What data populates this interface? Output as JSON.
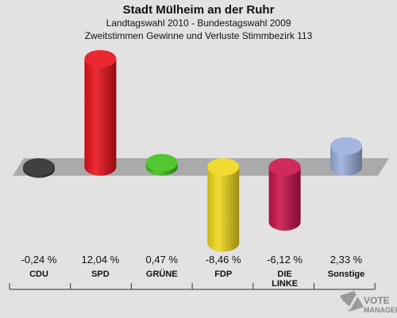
{
  "title": "Stadt Mülheim an der Ruhr",
  "subtitle1": "Landtagswahl 2010 - Bundestagswahl 2009",
  "subtitle2": "Zweitstimmen Gewinne und Verluste Stimmbezirk 113",
  "watermark": {
    "line1": "VOTE",
    "line2": "MANAGER"
  },
  "chart_data": {
    "type": "bar",
    "title": "Stadt Mülheim an der Ruhr",
    "subtitle": "Zweitstimmen Gewinne und Verluste Stimmbezirk 113",
    "categories": [
      "CDU",
      "SPD",
      "GRÜNE",
      "FDP",
      "DIE LINKE",
      "Sonstige"
    ],
    "category_labels": [
      [
        "CDU"
      ],
      [
        "SPD"
      ],
      [
        "GRÜNE"
      ],
      [
        "FDP"
      ],
      [
        "DIE",
        "LINKE"
      ],
      [
        "Sonstige"
      ]
    ],
    "values": [
      -0.24,
      12.04,
      0.47,
      -8.46,
      -6.12,
      2.33
    ],
    "value_labels": [
      "-0,24 %",
      "12,04 %",
      "0,47 %",
      "-8,46 %",
      "-6,12 %",
      "2,33 %"
    ],
    "colors": [
      "#2b2b2b",
      "#e8101a",
      "#3fc11a",
      "#efd61a",
      "#c8124a",
      "#9aaedb"
    ],
    "ylim": [
      -10,
      14
    ],
    "grid": false,
    "legend": "none"
  }
}
